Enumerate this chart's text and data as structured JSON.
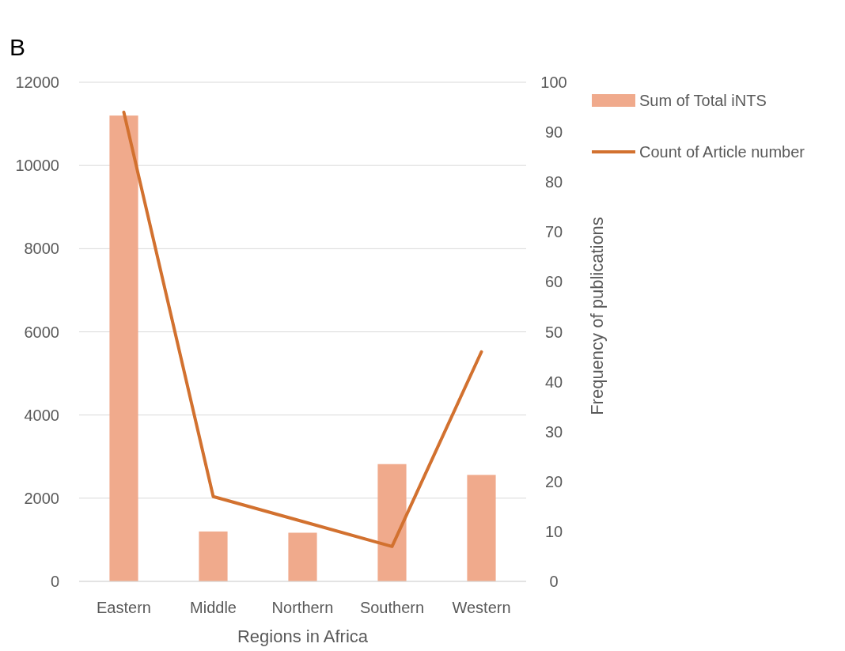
{
  "chart_data": {
    "type": "bar",
    "xlabel": "Regions in Africa",
    "y2label": "Frequency of publications",
    "annotations": [
      "B"
    ],
    "categories": [
      "Eastern",
      "Middle",
      "Northern",
      "Southern",
      "Western"
    ],
    "series": [
      {
        "name": "Sum of Total iNTS",
        "color": "#f0aa8c",
        "values": [
          11200,
          1200,
          1170,
          2820,
          2560
        ]
      },
      {
        "name": "Count of Article number",
        "type": "line",
        "axis": "y2",
        "color": "#d2712f",
        "values": [
          94,
          17,
          12,
          7,
          46
        ]
      }
    ],
    "ylim": [
      0,
      12000
    ],
    "yticks": [
      0,
      2000,
      4000,
      6000,
      8000,
      10000,
      12000
    ],
    "y2lim": [
      0,
      100
    ],
    "y2ticks": [
      0,
      10,
      20,
      30,
      40,
      50,
      60,
      70,
      80,
      90,
      100
    ],
    "grid": "y",
    "legend": "top right"
  }
}
